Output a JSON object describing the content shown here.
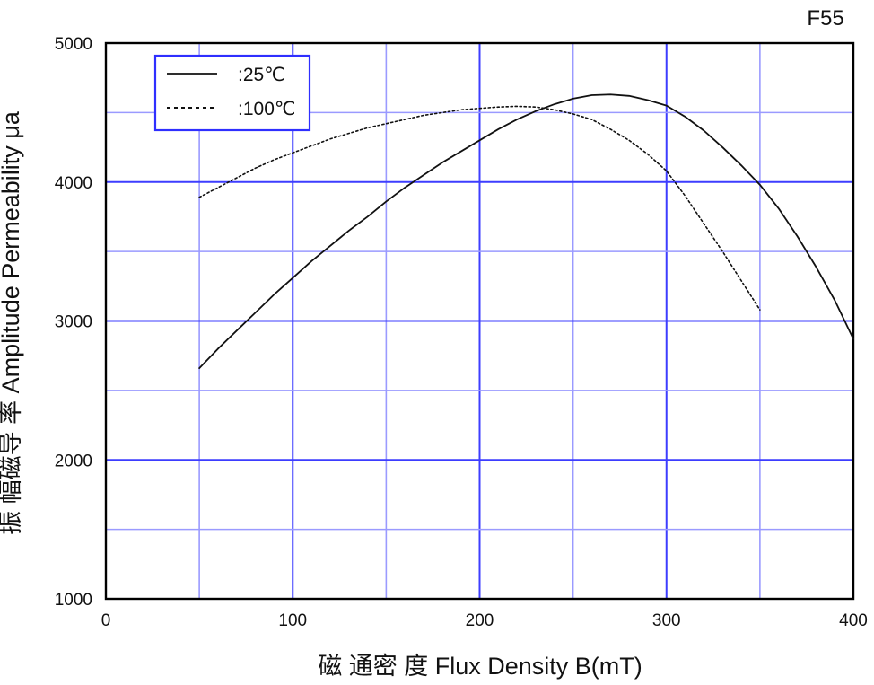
{
  "chart_data": {
    "type": "line",
    "title": "F55",
    "xlabel": "磁 通密 度 Flux Density B(mT)",
    "ylabel": "振 幅磁导 率 Amplitude Permeability  μa",
    "xlim": [
      0,
      400
    ],
    "ylim": [
      1000,
      5000
    ],
    "x_ticks": [
      0,
      100,
      200,
      300,
      400
    ],
    "y_ticks": [
      1000,
      2000,
      3000,
      4000,
      5000
    ],
    "x_tick_labels": [
      "0",
      "100",
      "200",
      "300",
      "400"
    ],
    "y_tick_labels": [
      "1000",
      "2000",
      "3000",
      "4000",
      "5000"
    ],
    "x_grid": [
      50,
      100,
      150,
      200,
      250,
      300,
      350,
      400
    ],
    "y_grid": [
      1500,
      2000,
      2500,
      3000,
      3500,
      4000,
      4500
    ],
    "grid": true,
    "legend_position": "top-left",
    "series": [
      {
        "name": ":25℃",
        "line_style": "solid",
        "color": "#111111",
        "x": [
          50,
          60,
          70,
          80,
          90,
          100,
          110,
          120,
          130,
          140,
          150,
          160,
          170,
          180,
          190,
          200,
          210,
          220,
          230,
          240,
          250,
          260,
          270,
          280,
          290,
          300,
          310,
          320,
          330,
          340,
          350,
          360,
          370,
          380,
          390,
          400
        ],
        "y": [
          2660,
          2800,
          2930,
          3060,
          3190,
          3310,
          3430,
          3540,
          3650,
          3750,
          3860,
          3960,
          4050,
          4140,
          4220,
          4300,
          4380,
          4450,
          4510,
          4560,
          4600,
          4625,
          4630,
          4620,
          4590,
          4550,
          4470,
          4370,
          4250,
          4120,
          3980,
          3810,
          3610,
          3390,
          3150,
          2870
        ]
      },
      {
        "name": ":100℃",
        "line_style": "dotted",
        "color": "#111111",
        "x": [
          50,
          60,
          70,
          80,
          90,
          100,
          110,
          120,
          130,
          140,
          150,
          160,
          170,
          180,
          190,
          200,
          210,
          220,
          230,
          240,
          250,
          260,
          270,
          280,
          290,
          300,
          310,
          320,
          330,
          340,
          350
        ],
        "y": [
          3890,
          3960,
          4030,
          4100,
          4160,
          4210,
          4260,
          4310,
          4350,
          4390,
          4420,
          4450,
          4480,
          4500,
          4520,
          4530,
          4540,
          4545,
          4540,
          4520,
          4490,
          4450,
          4380,
          4300,
          4200,
          4080,
          3900,
          3700,
          3500,
          3290,
          3080
        ]
      }
    ]
  }
}
